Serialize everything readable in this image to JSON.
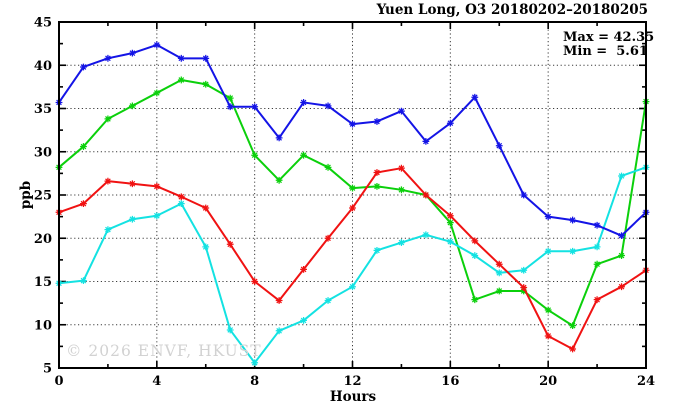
{
  "header": {
    "title": "Yuen Long, O3 20180202–20180205"
  },
  "stats": {
    "max": "Max = 42.35",
    "min": "Min =  5.61"
  },
  "watermark": "© 2026 ENVF, HKUST",
  "axes": {
    "x_label": "Hours",
    "y_label": "ppb"
  },
  "chart_data": {
    "type": "line",
    "title": "Yuen Long, O3 20180202–20180205",
    "xlabel": "Hours",
    "ylabel": "ppb",
    "xlim": [
      0,
      24
    ],
    "ylim": [
      5,
      45
    ],
    "x_tick_labels": [
      "0",
      "4",
      "8",
      "12",
      "16",
      "20",
      "24"
    ],
    "x_tick_values": [
      0,
      4,
      8,
      12,
      16,
      20,
      24
    ],
    "x_minor_ticks": [
      2,
      6,
      10,
      14,
      18,
      22
    ],
    "y_tick_labels": [
      "5",
      "10",
      "15",
      "20",
      "25",
      "30",
      "35",
      "40",
      "45"
    ],
    "y_tick_values": [
      5,
      10,
      15,
      20,
      25,
      30,
      35,
      40,
      45
    ],
    "y_minor_ticks": [
      7.5,
      12.5,
      17.5,
      22.5,
      27.5,
      32.5,
      37.5,
      42.5
    ],
    "grid_x_values": [
      4,
      8,
      12,
      16,
      20
    ],
    "grid_y_values": [
      10,
      15,
      20,
      25,
      30,
      35,
      40
    ],
    "grid_style": "dotted",
    "legend_position": "none",
    "marker": "asterisk",
    "annotations": {
      "max": 42.35,
      "min": 5.61
    },
    "x": [
      0,
      1,
      2,
      3,
      4,
      5,
      6,
      7,
      8,
      9,
      10,
      11,
      12,
      13,
      14,
      15,
      16,
      17,
      18,
      19,
      20,
      21,
      22,
      23,
      24
    ],
    "series": [
      {
        "name": "series-green",
        "color": "#0bd00b",
        "values": [
          28.2,
          30.6,
          33.8,
          35.3,
          36.8,
          38.3,
          37.8,
          36.2,
          29.6,
          26.7,
          29.6,
          28.2,
          25.8,
          26.0,
          25.6,
          25.0,
          21.8,
          12.9,
          13.9,
          13.9,
          11.7,
          9.9,
          17.0,
          18.0,
          35.8
        ]
      },
      {
        "name": "series-cyan",
        "color": "#14e2e2",
        "values": [
          14.8,
          15.1,
          21.0,
          22.2,
          22.6,
          24.0,
          19.0,
          9.4,
          5.61,
          9.3,
          10.5,
          12.8,
          14.4,
          18.6,
          19.5,
          20.4,
          19.6,
          18.0,
          16.0,
          16.3,
          18.5,
          18.5,
          19.0,
          27.2,
          28.2
        ]
      },
      {
        "name": "series-red",
        "color": "#f01212",
        "values": [
          23.0,
          24.0,
          26.6,
          26.3,
          26.0,
          24.8,
          23.5,
          19.3,
          15.0,
          12.8,
          16.4,
          20.0,
          23.5,
          27.6,
          28.1,
          25.0,
          22.6,
          19.7,
          17.0,
          14.3,
          8.7,
          7.2,
          12.9,
          14.4,
          16.3
        ]
      },
      {
        "name": "series-blue",
        "color": "#1414e6",
        "values": [
          35.7,
          39.8,
          40.8,
          41.4,
          42.35,
          40.8,
          40.8,
          35.2,
          35.2,
          31.6,
          35.7,
          35.3,
          33.2,
          33.5,
          34.7,
          31.2,
          33.3,
          36.3,
          30.7,
          25.0,
          22.5,
          22.1,
          21.5,
          20.3,
          23.0
        ]
      }
    ]
  }
}
